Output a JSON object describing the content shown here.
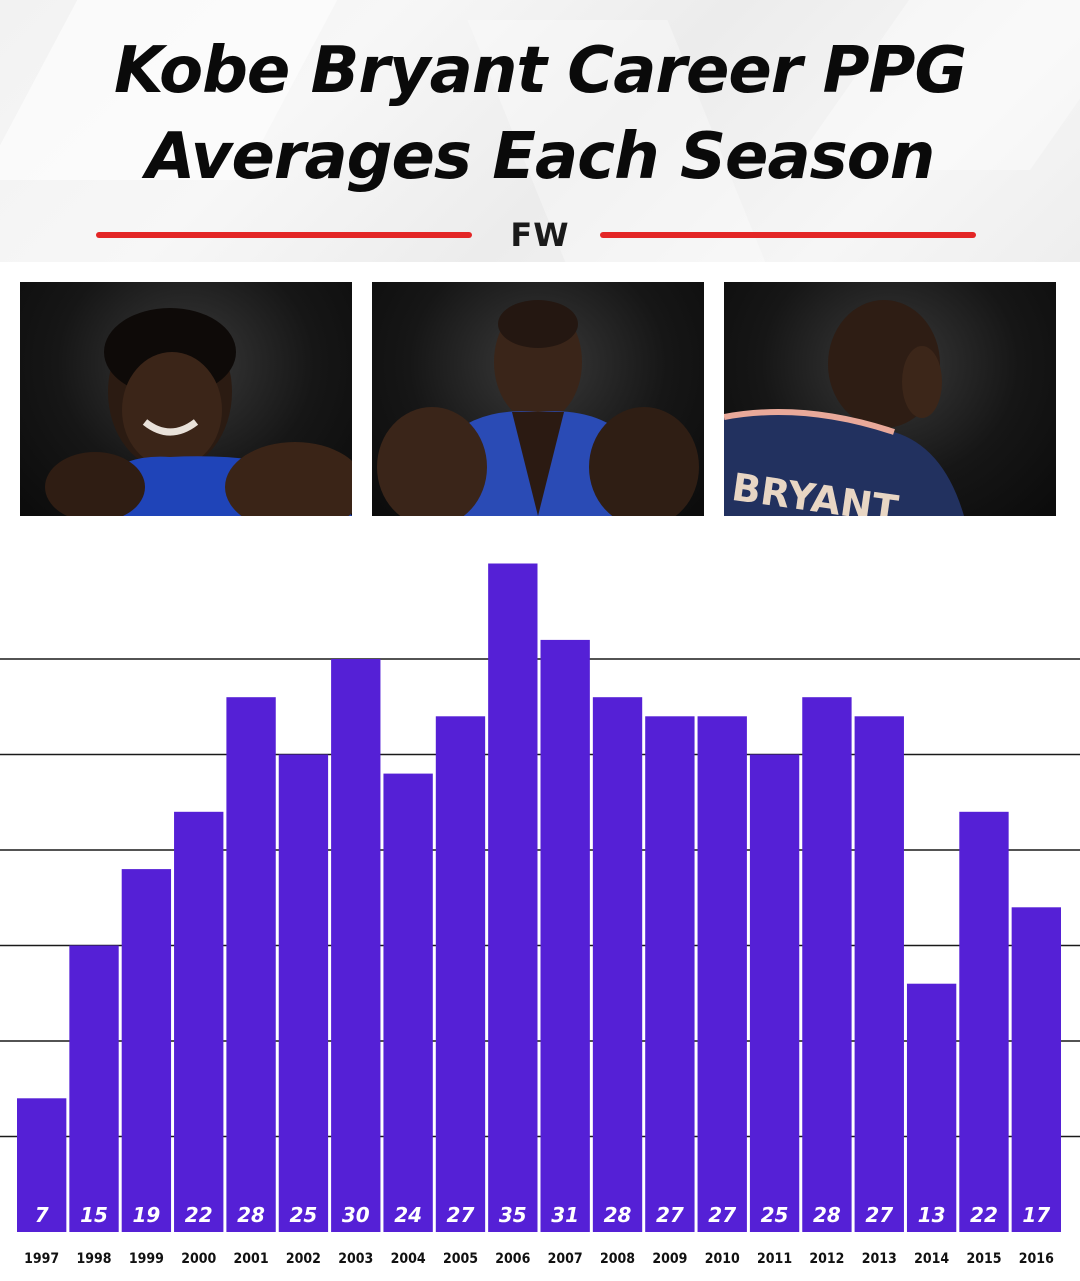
{
  "header": {
    "title_line1": "Kobe Bryant Career PPG",
    "title_line2": "Averages Each Season",
    "logo": "FW",
    "accent_color": "#e32626"
  },
  "photos": [
    {
      "icon": "player-portrait-smiling"
    },
    {
      "icon": "player-portrait-front"
    },
    {
      "icon": "player-portrait-back",
      "jersey_text": "BRYANT"
    }
  ],
  "chart_data": {
    "type": "bar",
    "title": "Kobe Bryant Career PPG Averages Each Season",
    "xlabel": "",
    "ylabel": "",
    "categories": [
      "1997",
      "1998",
      "1999",
      "2000",
      "2001",
      "2002",
      "2003",
      "2004",
      "2005",
      "2006",
      "2007",
      "2008",
      "2009",
      "2010",
      "2011",
      "2012",
      "2013",
      "2014",
      "2015",
      "2016"
    ],
    "values": [
      7,
      15,
      19,
      22,
      28,
      25,
      30,
      24,
      27,
      35,
      31,
      28,
      27,
      27,
      25,
      28,
      27,
      13,
      22,
      17
    ],
    "ylim": [
      0,
      36
    ],
    "grid": true,
    "bar_color": "#5520d6",
    "label_color": "#ffffff"
  }
}
